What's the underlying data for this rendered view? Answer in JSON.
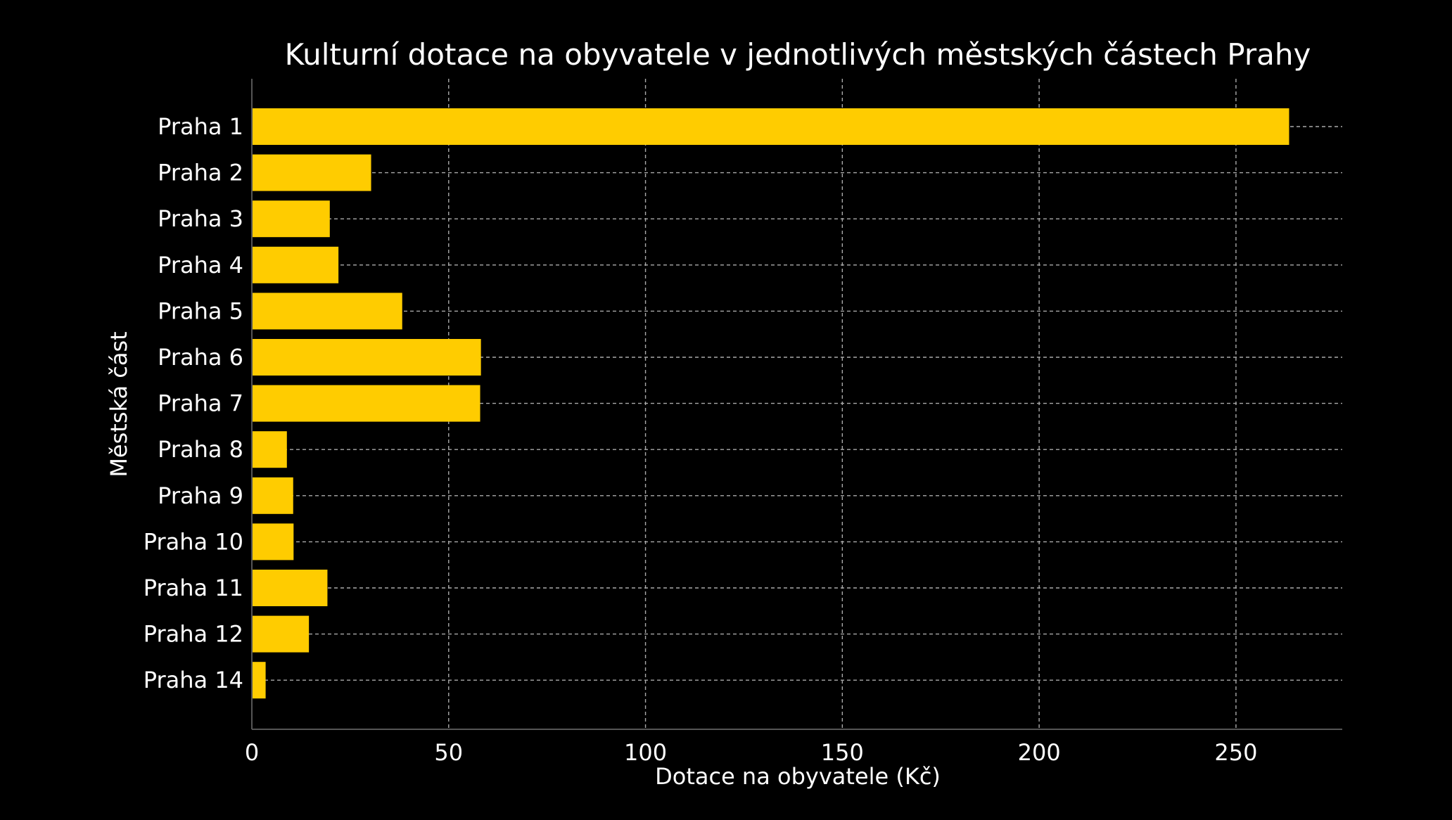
{
  "chart_data": {
    "type": "bar",
    "orientation": "horizontal",
    "title": "Kulturní dotace na obyvatele v jednotlivých městských částech Prahy",
    "xlabel": "Dotace na obyvatele (Kč)",
    "ylabel": "Městská část",
    "categories": [
      "Praha 1",
      "Praha 2",
      "Praha 3",
      "Praha 4",
      "Praha 5",
      "Praha 6",
      "Praha 7",
      "Praha 8",
      "Praha 9",
      "Praha 10",
      "Praha 11",
      "Praha 12",
      "Praha 14"
    ],
    "values": [
      263.5,
      30.3,
      19.8,
      22.0,
      38.2,
      58.2,
      58.0,
      8.9,
      10.5,
      10.6,
      19.2,
      14.5,
      3.5
    ],
    "xlim": [
      0,
      277
    ],
    "xticks": [
      0,
      50,
      100,
      150,
      200,
      250
    ],
    "grid": true,
    "colors": {
      "background": "#000000",
      "bar": "#ffcc00",
      "text": "#ffffff",
      "grid": "#aaaaaa",
      "axis": "#555555"
    }
  }
}
